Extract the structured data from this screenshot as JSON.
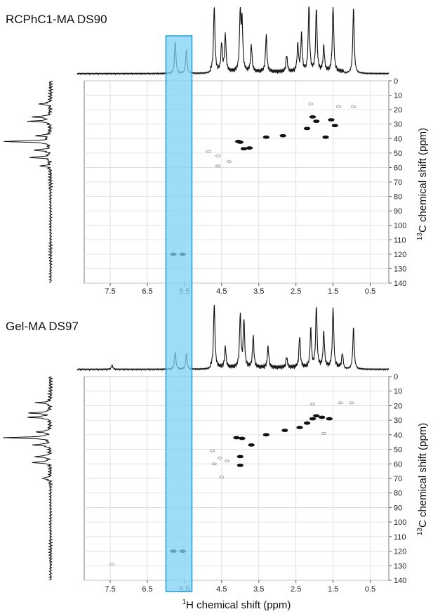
{
  "figure": {
    "highlight_color": "#7fd0f5",
    "highlight_border": "#1a9fd9",
    "grid_color": "#d9d9d9",
    "peak_color": "#111111",
    "weak_peak_color": "#9a9a9a",
    "xlabel_sup": "1",
    "xlabel_rest": "H chemical shift (ppm)",
    "ylabel_sup": "13",
    "ylabel_rest": "C chemical shift (ppm)",
    "highlight_range_ppm": [
      5.3,
      6.0
    ]
  },
  "chart_data": [
    {
      "type": "scatter",
      "title": "RCPhC1-MA DS90",
      "xlabel": "1H chemical shift (ppm)",
      "ylabel": "13C chemical shift (ppm)",
      "xlim": [
        8.2,
        0
      ],
      "ylim": [
        0,
        140
      ],
      "x_ticks": [
        "7.5",
        "6.5",
        "5.5",
        "4.5",
        "3.5",
        "2.5",
        "1.5",
        "0.5"
      ],
      "x_tick_values": [
        7.5,
        6.5,
        5.5,
        4.5,
        3.5,
        2.5,
        1.5,
        0.5
      ],
      "y_ticks": [
        "0",
        "10",
        "20",
        "30",
        "40",
        "50",
        "60",
        "70",
        "80",
        "90",
        "100",
        "110",
        "120",
        "130",
        "140"
      ],
      "y_tick_values": [
        0,
        10,
        20,
        30,
        40,
        50,
        60,
        70,
        80,
        90,
        100,
        110,
        120,
        130,
        140
      ],
      "grid": true,
      "cross_peaks": [
        {
          "x": 4.05,
          "y": 42,
          "strength": "strong"
        },
        {
          "x": 4.0,
          "y": 42.5,
          "strength": "strong"
        },
        {
          "x": 3.9,
          "y": 47,
          "strength": "strong"
        },
        {
          "x": 3.75,
          "y": 46.5,
          "strength": "strong"
        },
        {
          "x": 3.3,
          "y": 39,
          "strength": "strong"
        },
        {
          "x": 2.85,
          "y": 38,
          "strength": "strong"
        },
        {
          "x": 2.2,
          "y": 33,
          "strength": "strong"
        },
        {
          "x": 2.05,
          "y": 25,
          "strength": "strong"
        },
        {
          "x": 1.95,
          "y": 28,
          "strength": "strong"
        },
        {
          "x": 1.55,
          "y": 27,
          "strength": "strong"
        },
        {
          "x": 1.7,
          "y": 39,
          "strength": "strong"
        },
        {
          "x": 1.45,
          "y": 31,
          "strength": "strong"
        },
        {
          "x": 2.1,
          "y": 16,
          "strength": "weak"
        },
        {
          "x": 1.35,
          "y": 18,
          "strength": "weak"
        },
        {
          "x": 0.95,
          "y": 18,
          "strength": "weak"
        },
        {
          "x": 4.85,
          "y": 49,
          "strength": "weak"
        },
        {
          "x": 4.6,
          "y": 52,
          "strength": "weak"
        },
        {
          "x": 4.6,
          "y": 59,
          "strength": "weak"
        },
        {
          "x": 4.3,
          "y": 56,
          "strength": "weak"
        },
        {
          "x": 5.8,
          "y": 120,
          "strength": "strong"
        },
        {
          "x": 5.55,
          "y": 120,
          "strength": "strong"
        }
      ],
      "h_spectrum_peaks": [
        {
          "x": 5.75,
          "h": 0.48
        },
        {
          "x": 5.45,
          "h": 0.35
        },
        {
          "x": 4.7,
          "h": 0.98
        },
        {
          "x": 4.5,
          "h": 0.42
        },
        {
          "x": 4.4,
          "h": 0.55
        },
        {
          "x": 4.0,
          "h": 0.88
        },
        {
          "x": 3.95,
          "h": 0.72
        },
        {
          "x": 3.7,
          "h": 0.4
        },
        {
          "x": 3.3,
          "h": 0.55
        },
        {
          "x": 2.75,
          "h": 0.25
        },
        {
          "x": 2.45,
          "h": 0.4
        },
        {
          "x": 2.35,
          "h": 0.55
        },
        {
          "x": 2.15,
          "h": 1.0
        },
        {
          "x": 1.95,
          "h": 0.95
        },
        {
          "x": 1.75,
          "h": 0.38
        },
        {
          "x": 1.5,
          "h": 1.0
        },
        {
          "x": 0.95,
          "h": 0.98
        }
      ],
      "c_spectrum_peaks": [
        {
          "y": 42,
          "w": 1.0
        },
        {
          "y": 28,
          "w": 0.45
        },
        {
          "y": 25,
          "w": 0.4
        },
        {
          "y": 48,
          "w": 0.38
        },
        {
          "y": 53,
          "w": 0.45
        },
        {
          "y": 38,
          "w": 0.3
        },
        {
          "y": 16,
          "w": 0.25
        },
        {
          "y": 59,
          "w": 0.22
        }
      ]
    },
    {
      "type": "scatter",
      "title": "Gel-MA DS97",
      "xlabel": "1H chemical shift (ppm)",
      "ylabel": "13C chemical shift (ppm)",
      "xlim": [
        8.2,
        0
      ],
      "ylim": [
        0,
        140
      ],
      "x_ticks": [
        "7.5",
        "6.5",
        "5.5",
        "4.5",
        "3.5",
        "2.5",
        "1.5",
        "0.5"
      ],
      "x_tick_values": [
        7.5,
        6.5,
        5.5,
        4.5,
        3.5,
        2.5,
        1.5,
        0.5
      ],
      "y_ticks": [
        "0",
        "10",
        "20",
        "30",
        "40",
        "50",
        "60",
        "70",
        "80",
        "90",
        "100",
        "110",
        "120",
        "130",
        "140"
      ],
      "y_tick_values": [
        0,
        10,
        20,
        30,
        40,
        50,
        60,
        70,
        80,
        90,
        100,
        110,
        120,
        130,
        140
      ],
      "grid": true,
      "cross_peaks": [
        {
          "x": 4.1,
          "y": 42,
          "strength": "strong"
        },
        {
          "x": 3.95,
          "y": 42.5,
          "strength": "strong"
        },
        {
          "x": 3.7,
          "y": 47,
          "strength": "strong"
        },
        {
          "x": 3.3,
          "y": 40,
          "strength": "strong"
        },
        {
          "x": 4.0,
          "y": 55,
          "strength": "strong"
        },
        {
          "x": 4.0,
          "y": 61,
          "strength": "strong"
        },
        {
          "x": 2.4,
          "y": 35,
          "strength": "strong"
        },
        {
          "x": 2.2,
          "y": 32,
          "strength": "strong"
        },
        {
          "x": 2.05,
          "y": 29,
          "strength": "strong"
        },
        {
          "x": 1.95,
          "y": 27,
          "strength": "strong"
        },
        {
          "x": 1.8,
          "y": 28,
          "strength": "strong"
        },
        {
          "x": 1.6,
          "y": 29,
          "strength": "strong"
        },
        {
          "x": 2.8,
          "y": 37,
          "strength": "strong"
        },
        {
          "x": 1.75,
          "y": 39,
          "strength": "weak"
        },
        {
          "x": 1.3,
          "y": 18,
          "strength": "weak"
        },
        {
          "x": 1.0,
          "y": 18,
          "strength": "weak"
        },
        {
          "x": 2.05,
          "y": 19,
          "strength": "weak"
        },
        {
          "x": 4.75,
          "y": 51,
          "strength": "weak"
        },
        {
          "x": 4.55,
          "y": 56,
          "strength": "weak"
        },
        {
          "x": 4.35,
          "y": 58,
          "strength": "weak"
        },
        {
          "x": 4.7,
          "y": 60,
          "strength": "weak"
        },
        {
          "x": 4.5,
          "y": 69,
          "strength": "weak"
        },
        {
          "x": 5.8,
          "y": 120,
          "strength": "strong"
        },
        {
          "x": 5.55,
          "y": 120,
          "strength": "strong"
        },
        {
          "x": 7.45,
          "y": 129,
          "strength": "weak"
        }
      ],
      "h_spectrum_peaks": [
        {
          "x": 7.45,
          "h": 0.06
        },
        {
          "x": 5.75,
          "h": 0.25
        },
        {
          "x": 5.45,
          "h": 0.22
        },
        {
          "x": 4.7,
          "h": 0.92
        },
        {
          "x": 4.4,
          "h": 0.3
        },
        {
          "x": 4.0,
          "h": 0.75
        },
        {
          "x": 3.9,
          "h": 0.68
        },
        {
          "x": 3.65,
          "h": 0.45
        },
        {
          "x": 3.25,
          "h": 0.3
        },
        {
          "x": 2.75,
          "h": 0.15
        },
        {
          "x": 2.4,
          "h": 0.45
        },
        {
          "x": 2.1,
          "h": 0.55
        },
        {
          "x": 1.95,
          "h": 0.88
        },
        {
          "x": 1.75,
          "h": 0.5
        },
        {
          "x": 1.5,
          "h": 0.85
        },
        {
          "x": 1.25,
          "h": 0.2
        },
        {
          "x": 0.95,
          "h": 0.6
        }
      ],
      "c_spectrum_peaks": [
        {
          "y": 42,
          "w": 1.0
        },
        {
          "y": 28,
          "w": 0.5
        },
        {
          "y": 25,
          "w": 0.45
        },
        {
          "y": 47,
          "w": 0.4
        },
        {
          "y": 55,
          "w": 0.35
        },
        {
          "y": 59,
          "w": 0.4
        },
        {
          "y": 18,
          "w": 0.3
        },
        {
          "y": 38,
          "w": 0.3
        },
        {
          "y": 70,
          "w": 0.2
        }
      ]
    }
  ]
}
